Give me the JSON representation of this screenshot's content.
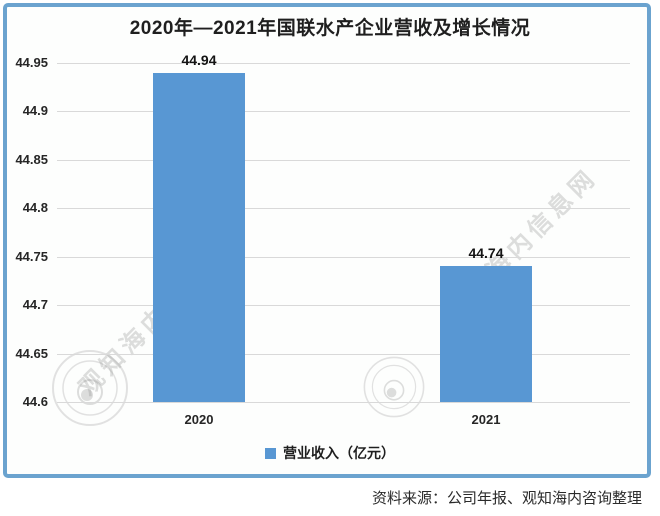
{
  "title": "2020年—2021年国联水产企业营收及增长情况",
  "source": {
    "text": "资料来源：公司年报、观知海内咨询整理"
  },
  "legend": {
    "label": "营业收入（亿元）"
  },
  "watermarks": {
    "left_text": "观知海内咨询网",
    "right_text": "观知海内信息网",
    "right_sub": ".COM"
  },
  "colors": {
    "bar": "#5897d3",
    "frame": "#6ba3cf",
    "grid": "#d9d9d9",
    "text": "#262626"
  },
  "chart_data": {
    "type": "bar",
    "title": "2020年—2021年国联水产企业营收及增长情况",
    "categories": [
      "2020",
      "2021"
    ],
    "series": [
      {
        "name": "营业收入（亿元）",
        "values": [
          44.94,
          44.74
        ]
      }
    ],
    "data_labels": [
      "44.94",
      "44.74"
    ],
    "ylabel": "",
    "xlabel": "",
    "ylim": [
      44.6,
      44.95
    ],
    "ytick_step": 0.05,
    "yticks": [
      "44.95",
      "44.9",
      "44.85",
      "44.8",
      "44.75",
      "44.7",
      "44.65",
      "44.6"
    ],
    "grid": true,
    "legend_position": "bottom"
  }
}
